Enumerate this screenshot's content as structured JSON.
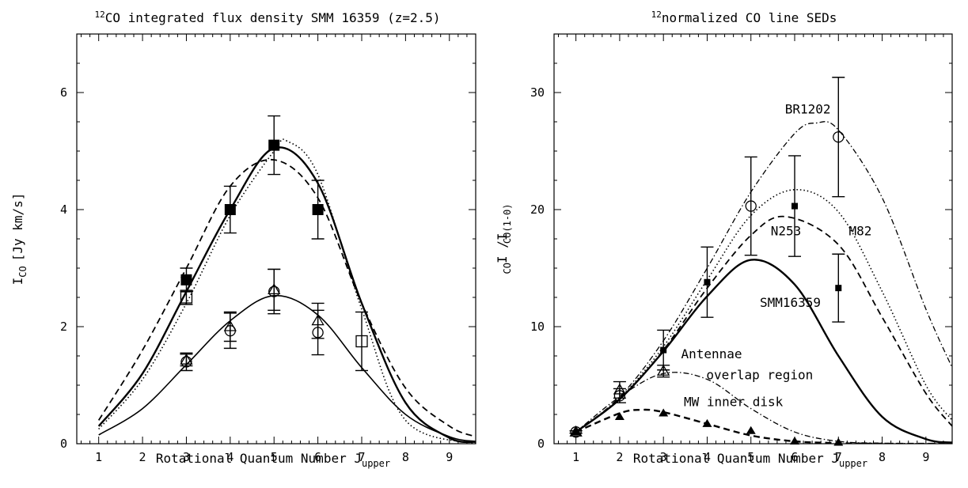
{
  "chart_data": [
    {
      "type": "line",
      "title": "CO integrated flux density SMM 16359 (z=2.5)",
      "title_superscript": "12",
      "xlabel": "Rotational Quantum Number J",
      "xlabel_subscript": "upper",
      "ylabel": "I",
      "ylabel_subscript": "CO",
      "ylabel_unit": "[Jy km/s]",
      "xlim": [
        0.5,
        9.6
      ],
      "ylim": [
        0,
        7
      ],
      "xticks": [
        "1",
        "2",
        "3",
        "4",
        "5",
        "6",
        "7",
        "8",
        "9"
      ],
      "yticks": [
        "0",
        "2",
        "4",
        "6"
      ],
      "series": [
        {
          "marker": "filled-square",
          "x": [
            3,
            4,
            5,
            6
          ],
          "y": [
            2.8,
            4.0,
            5.1,
            4.0
          ],
          "err": [
            0.2,
            0.4,
            0.5,
            0.5
          ]
        },
        {
          "marker": "open-square",
          "x": [
            3,
            7
          ],
          "y": [
            2.5,
            1.75
          ],
          "err": [
            0.12,
            0.5
          ]
        },
        {
          "marker": "open-circle",
          "x": [
            3,
            4,
            5,
            6
          ],
          "y": [
            1.4,
            1.93,
            2.6,
            1.9
          ],
          "err": [
            0.15,
            0.3,
            0.38,
            0.38
          ]
        },
        {
          "marker": "open-triangle",
          "x": [
            3,
            4,
            5,
            6
          ],
          "y": [
            1.43,
            2.0,
            2.63,
            2.1
          ],
          "err": [
            0.1,
            0.25,
            0.35,
            0.3
          ]
        }
      ],
      "models": [
        {
          "style": "solid-thick",
          "x": [
            1,
            2,
            3,
            4,
            5,
            6,
            7,
            8,
            9,
            9.6
          ],
          "y": [
            0.3,
            1.2,
            2.6,
            4.0,
            5.05,
            4.45,
            2.4,
            0.7,
            0.1,
            0.03
          ]
        },
        {
          "style": "dashed",
          "x": [
            1,
            2,
            3,
            4,
            5,
            6,
            7,
            8,
            9,
            9.6
          ],
          "y": [
            0.4,
            1.6,
            3.0,
            4.4,
            4.85,
            4.2,
            2.4,
            0.95,
            0.3,
            0.12
          ]
        },
        {
          "style": "dotted",
          "x": [
            1,
            2,
            3,
            4,
            5,
            5.3,
            6,
            7,
            8,
            9.6
          ],
          "y": [
            0.25,
            1.1,
            2.4,
            3.9,
            5.0,
            5.17,
            4.6,
            2.3,
            0.4,
            0.0
          ]
        },
        {
          "style": "solid",
          "x": [
            1,
            2,
            3,
            4,
            5,
            6,
            7,
            8,
            9,
            9.6
          ],
          "y": [
            0.15,
            0.6,
            1.35,
            2.1,
            2.53,
            2.2,
            1.3,
            0.5,
            0.12,
            0.04
          ]
        }
      ]
    },
    {
      "type": "line",
      "title": "normalized CO line SEDs",
      "title_superscript": "12",
      "xlabel": "Rotational Quantum Number J",
      "xlabel_subscript": "upper",
      "ylabel": "I    /I",
      "ylabel_subscript": "CO",
      "ylabel_subscript2": "CO(1-0)",
      "xlim": [
        0.5,
        9.6
      ],
      "ylim": [
        0,
        35
      ],
      "xticks": [
        "1",
        "2",
        "3",
        "4",
        "5",
        "6",
        "7",
        "8",
        "9"
      ],
      "yticks": [
        "0",
        "10",
        "20",
        "30"
      ],
      "annotations": [
        {
          "text": "BR1202",
          "x": 6.3,
          "y": 28.2
        },
        {
          "text": "N253",
          "x": 5.8,
          "y": 17.8
        },
        {
          "text": "M82",
          "x": 7.5,
          "y": 17.8
        },
        {
          "text": "SMM16359",
          "x": 5.9,
          "y": 11.7
        },
        {
          "text": "Antennae",
          "x": 4.1,
          "y": 7.3
        },
        {
          "text": "overlap region",
          "x": 5.2,
          "y": 5.5
        },
        {
          "text": "MW inner disk",
          "x": 4.6,
          "y": 3.2
        }
      ],
      "series": [
        {
          "marker": "open-circle",
          "x": [
            5,
            7
          ],
          "y": [
            20.3,
            26.2
          ],
          "err": [
            4.2,
            5.1
          ]
        },
        {
          "marker": "small-filled-square",
          "x": [
            3,
            4,
            6,
            7
          ],
          "y": [
            8.0,
            13.8,
            20.3,
            13.3
          ],
          "err": [
            1.7,
            3.0,
            4.3,
            2.9
          ]
        },
        {
          "marker": "open-triangle",
          "x": [
            1,
            2,
            3
          ],
          "y": [
            1.0,
            4.6,
            6.2
          ],
          "err": [
            0.1,
            0.7,
            0.5
          ]
        },
        {
          "marker": "open-circle",
          "x": [
            1,
            2
          ],
          "y": [
            1.0,
            4.1
          ],
          "err": [
            0.1,
            0.6
          ]
        },
        {
          "marker": "filled-triangle",
          "x": [
            1,
            2,
            3,
            4,
            5,
            6,
            7
          ],
          "y": [
            1.0,
            2.3,
            2.6,
            1.7,
            1.1,
            0.2,
            0.1
          ],
          "err": []
        }
      ],
      "models": [
        {
          "label": "BR1202",
          "style": "dash-dot",
          "x": [
            1,
            2,
            3,
            4,
            5,
            6,
            6.5,
            7,
            8,
            9,
            9.6
          ],
          "y": [
            1.0,
            4.0,
            8.8,
            15.0,
            21.5,
            26.5,
            27.4,
            26.8,
            21.0,
            11.5,
            6.5
          ]
        },
        {
          "label": "M82",
          "style": "dotted",
          "x": [
            1,
            2,
            3,
            4,
            5,
            6,
            7,
            8,
            9,
            9.6
          ],
          "y": [
            1.0,
            3.9,
            8.3,
            14.0,
            19.5,
            21.7,
            19.8,
            13.0,
            5.0,
            2.0
          ]
        },
        {
          "label": "N253",
          "style": "dashed",
          "x": [
            1,
            2,
            3,
            4,
            5,
            5.8,
            7,
            8,
            9,
            9.6
          ],
          "y": [
            1.0,
            3.8,
            8.0,
            13.3,
            17.8,
            19.4,
            17.0,
            10.8,
            4.3,
            1.5
          ]
        },
        {
          "label": "SMM16359",
          "style": "solid-thick",
          "x": [
            1,
            2,
            3,
            4,
            5,
            6,
            7,
            8,
            9,
            9.6
          ],
          "y": [
            1.0,
            3.8,
            7.9,
            12.6,
            15.7,
            13.6,
            7.5,
            2.3,
            0.4,
            0.1
          ]
        },
        {
          "label": "Antennae overlap region",
          "style": "dash-dot",
          "x": [
            1,
            2,
            3,
            4,
            5,
            6,
            7,
            8,
            9.6
          ],
          "y": [
            1.0,
            4.0,
            6.0,
            5.5,
            3.0,
            1.0,
            0.2,
            0.05,
            0.0
          ]
        },
        {
          "label": "MW inner disk",
          "style": "dashed-thick",
          "x": [
            1,
            2,
            2.5,
            3,
            4,
            5,
            6,
            7,
            8,
            9.6
          ],
          "y": [
            1.0,
            2.6,
            2.9,
            2.7,
            1.7,
            0.7,
            0.2,
            0.05,
            0.0,
            0.0
          ]
        }
      ]
    }
  ]
}
